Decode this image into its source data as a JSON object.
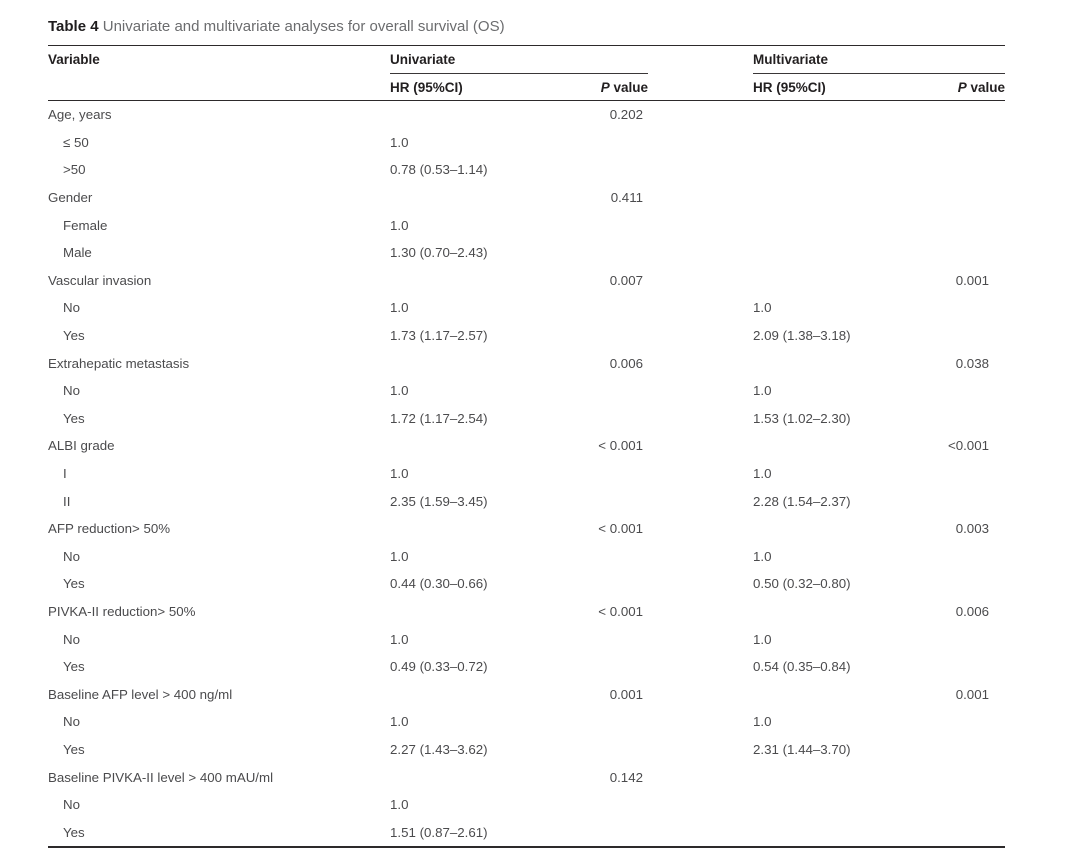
{
  "page": {
    "caption": {
      "label_bold": "Table 4",
      "label_rest": " Univariate and multivariate analyses for overall survival (OS)"
    }
  },
  "table": {
    "column_headers": {
      "variable": "Variable",
      "group_univariate": "Univariate",
      "group_multivariate": "Multivariate",
      "hr_univariate": "HR (95%CI)",
      "hr_multivariate": "HR (95%CI)",
      "p_italic": "P",
      "p_rest": " value"
    },
    "rows": [
      {
        "label": "Age, years",
        "indent": false,
        "uni_hr": "",
        "uni_p": "0.202",
        "multi_hr": "",
        "multi_p": ""
      },
      {
        "label": "≤ 50",
        "indent": true,
        "uni_hr": "1.0",
        "uni_p": "",
        "multi_hr": "",
        "multi_p": ""
      },
      {
        "label": ">50",
        "indent": true,
        "uni_hr": "0.78 (0.53–1.14)",
        "uni_p": "",
        "multi_hr": "",
        "multi_p": ""
      },
      {
        "label": "Gender",
        "indent": false,
        "uni_hr": "",
        "uni_p": "0.411",
        "multi_hr": "",
        "multi_p": ""
      },
      {
        "label": "Female",
        "indent": true,
        "uni_hr": "1.0",
        "uni_p": "",
        "multi_hr": "",
        "multi_p": ""
      },
      {
        "label": "Male",
        "indent": true,
        "uni_hr": "1.30 (0.70–2.43)",
        "uni_p": "",
        "multi_hr": "",
        "multi_p": ""
      },
      {
        "label": "Vascular invasion",
        "indent": false,
        "uni_hr": "",
        "uni_p": "0.007",
        "multi_hr": "",
        "multi_p": "0.001"
      },
      {
        "label": "No",
        "indent": true,
        "uni_hr": "1.0",
        "uni_p": "",
        "multi_hr": "1.0",
        "multi_p": ""
      },
      {
        "label": "Yes",
        "indent": true,
        "uni_hr": "1.73 (1.17–2.57)",
        "uni_p": "",
        "multi_hr": "2.09 (1.38–3.18)",
        "multi_p": ""
      },
      {
        "label": "Extrahepatic metastasis",
        "indent": false,
        "uni_hr": "",
        "uni_p": "0.006",
        "multi_hr": "",
        "multi_p": "0.038"
      },
      {
        "label": "No",
        "indent": true,
        "uni_hr": "1.0",
        "uni_p": "",
        "multi_hr": "1.0",
        "multi_p": ""
      },
      {
        "label": "Yes",
        "indent": true,
        "uni_hr": "1.72 (1.17–2.54)",
        "uni_p": "",
        "multi_hr": "1.53 (1.02–2.30)",
        "multi_p": ""
      },
      {
        "label": "ALBI grade",
        "indent": false,
        "uni_hr": "",
        "uni_p": "< 0.001",
        "multi_hr": "",
        "multi_p": "<0.001"
      },
      {
        "label": "I",
        "indent": true,
        "uni_hr": "1.0",
        "uni_p": "",
        "multi_hr": "1.0",
        "multi_p": ""
      },
      {
        "label": "II",
        "indent": true,
        "uni_hr": "2.35 (1.59–3.45)",
        "uni_p": "",
        "multi_hr": "2.28 (1.54–2.37)",
        "multi_p": ""
      },
      {
        "label": "AFP reduction> 50%",
        "indent": false,
        "uni_hr": "",
        "uni_p": "< 0.001",
        "multi_hr": "",
        "multi_p": "0.003"
      },
      {
        "label": "No",
        "indent": true,
        "uni_hr": "1.0",
        "uni_p": "",
        "multi_hr": "1.0",
        "multi_p": ""
      },
      {
        "label": "Yes",
        "indent": true,
        "uni_hr": "0.44 (0.30–0.66)",
        "uni_p": "",
        "multi_hr": "0.50 (0.32–0.80)",
        "multi_p": ""
      },
      {
        "label": "PIVKA-II reduction> 50%",
        "indent": false,
        "uni_hr": "",
        "uni_p": "< 0.001",
        "multi_hr": "",
        "multi_p": "0.006"
      },
      {
        "label": "No",
        "indent": true,
        "uni_hr": "1.0",
        "uni_p": "",
        "multi_hr": "1.0",
        "multi_p": ""
      },
      {
        "label": "Yes",
        "indent": true,
        "uni_hr": "0.49 (0.33–0.72)",
        "uni_p": "",
        "multi_hr": "0.54 (0.35–0.84)",
        "multi_p": ""
      },
      {
        "label": "Baseline AFP level > 400 ng/ml",
        "indent": false,
        "uni_hr": "",
        "uni_p": "0.001",
        "multi_hr": "",
        "multi_p": "0.001"
      },
      {
        "label": "No",
        "indent": true,
        "uni_hr": "1.0",
        "uni_p": "",
        "multi_hr": "1.0",
        "multi_p": ""
      },
      {
        "label": "Yes",
        "indent": true,
        "uni_hr": "2.27 (1.43–3.62)",
        "uni_p": "",
        "multi_hr": "2.31 (1.44–3.70)",
        "multi_p": ""
      },
      {
        "label": "Baseline PIVKA-II level > 400 mAU/ml",
        "indent": false,
        "uni_hr": "",
        "uni_p": "0.142",
        "multi_hr": "",
        "multi_p": ""
      },
      {
        "label": "No",
        "indent": true,
        "uni_hr": "1.0",
        "uni_p": "",
        "multi_hr": "",
        "multi_p": ""
      },
      {
        "label": "Yes",
        "indent": true,
        "uni_hr": "1.51 (0.87–2.61)",
        "uni_p": "",
        "multi_hr": "",
        "multi_p": ""
      }
    ]
  }
}
